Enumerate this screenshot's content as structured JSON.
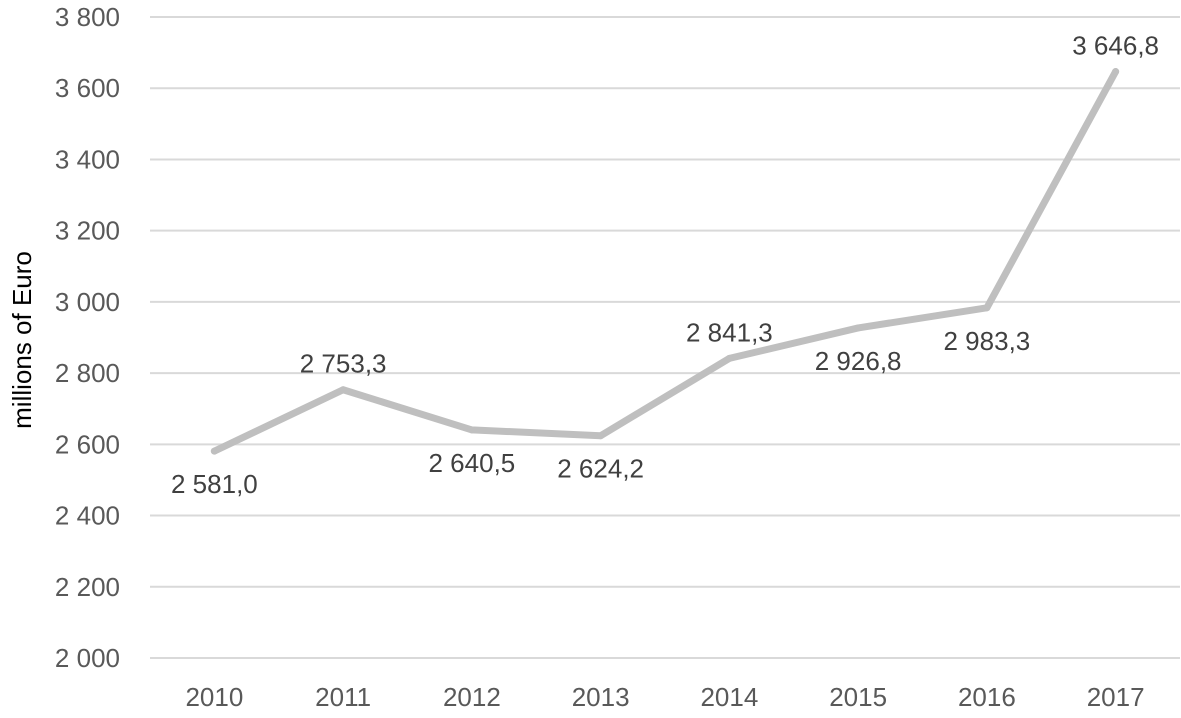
{
  "chart_data": {
    "type": "line",
    "title": "",
    "xlabel": "",
    "ylabel": "millions of Euro",
    "categories": [
      "2010",
      "2011",
      "2012",
      "2013",
      "2014",
      "2015",
      "2016",
      "2017"
    ],
    "series": [
      {
        "values": [
          2581.0,
          2753.3,
          2640.5,
          2624.2,
          2841.3,
          2926.8,
          2983.3,
          3646.8
        ],
        "labels": [
          "2 581,0",
          "2 753,3",
          "2 640,5",
          "2 624,2",
          "2 841,3",
          "2 926,8",
          "2 983,3",
          "3 646,8"
        ],
        "color": "#bfbfbf"
      }
    ],
    "ylim": [
      2000,
      3800
    ],
    "yticks": [
      2000,
      2200,
      2400,
      2600,
      2800,
      3000,
      3200,
      3400,
      3600,
      3800
    ],
    "ytick_labels": [
      "2 000",
      "2 200",
      "2 400",
      "2 600",
      "2 800",
      "3 000",
      "3 200",
      "3 400",
      "3 600",
      "3 800"
    ],
    "grid": true,
    "legend": "none"
  }
}
